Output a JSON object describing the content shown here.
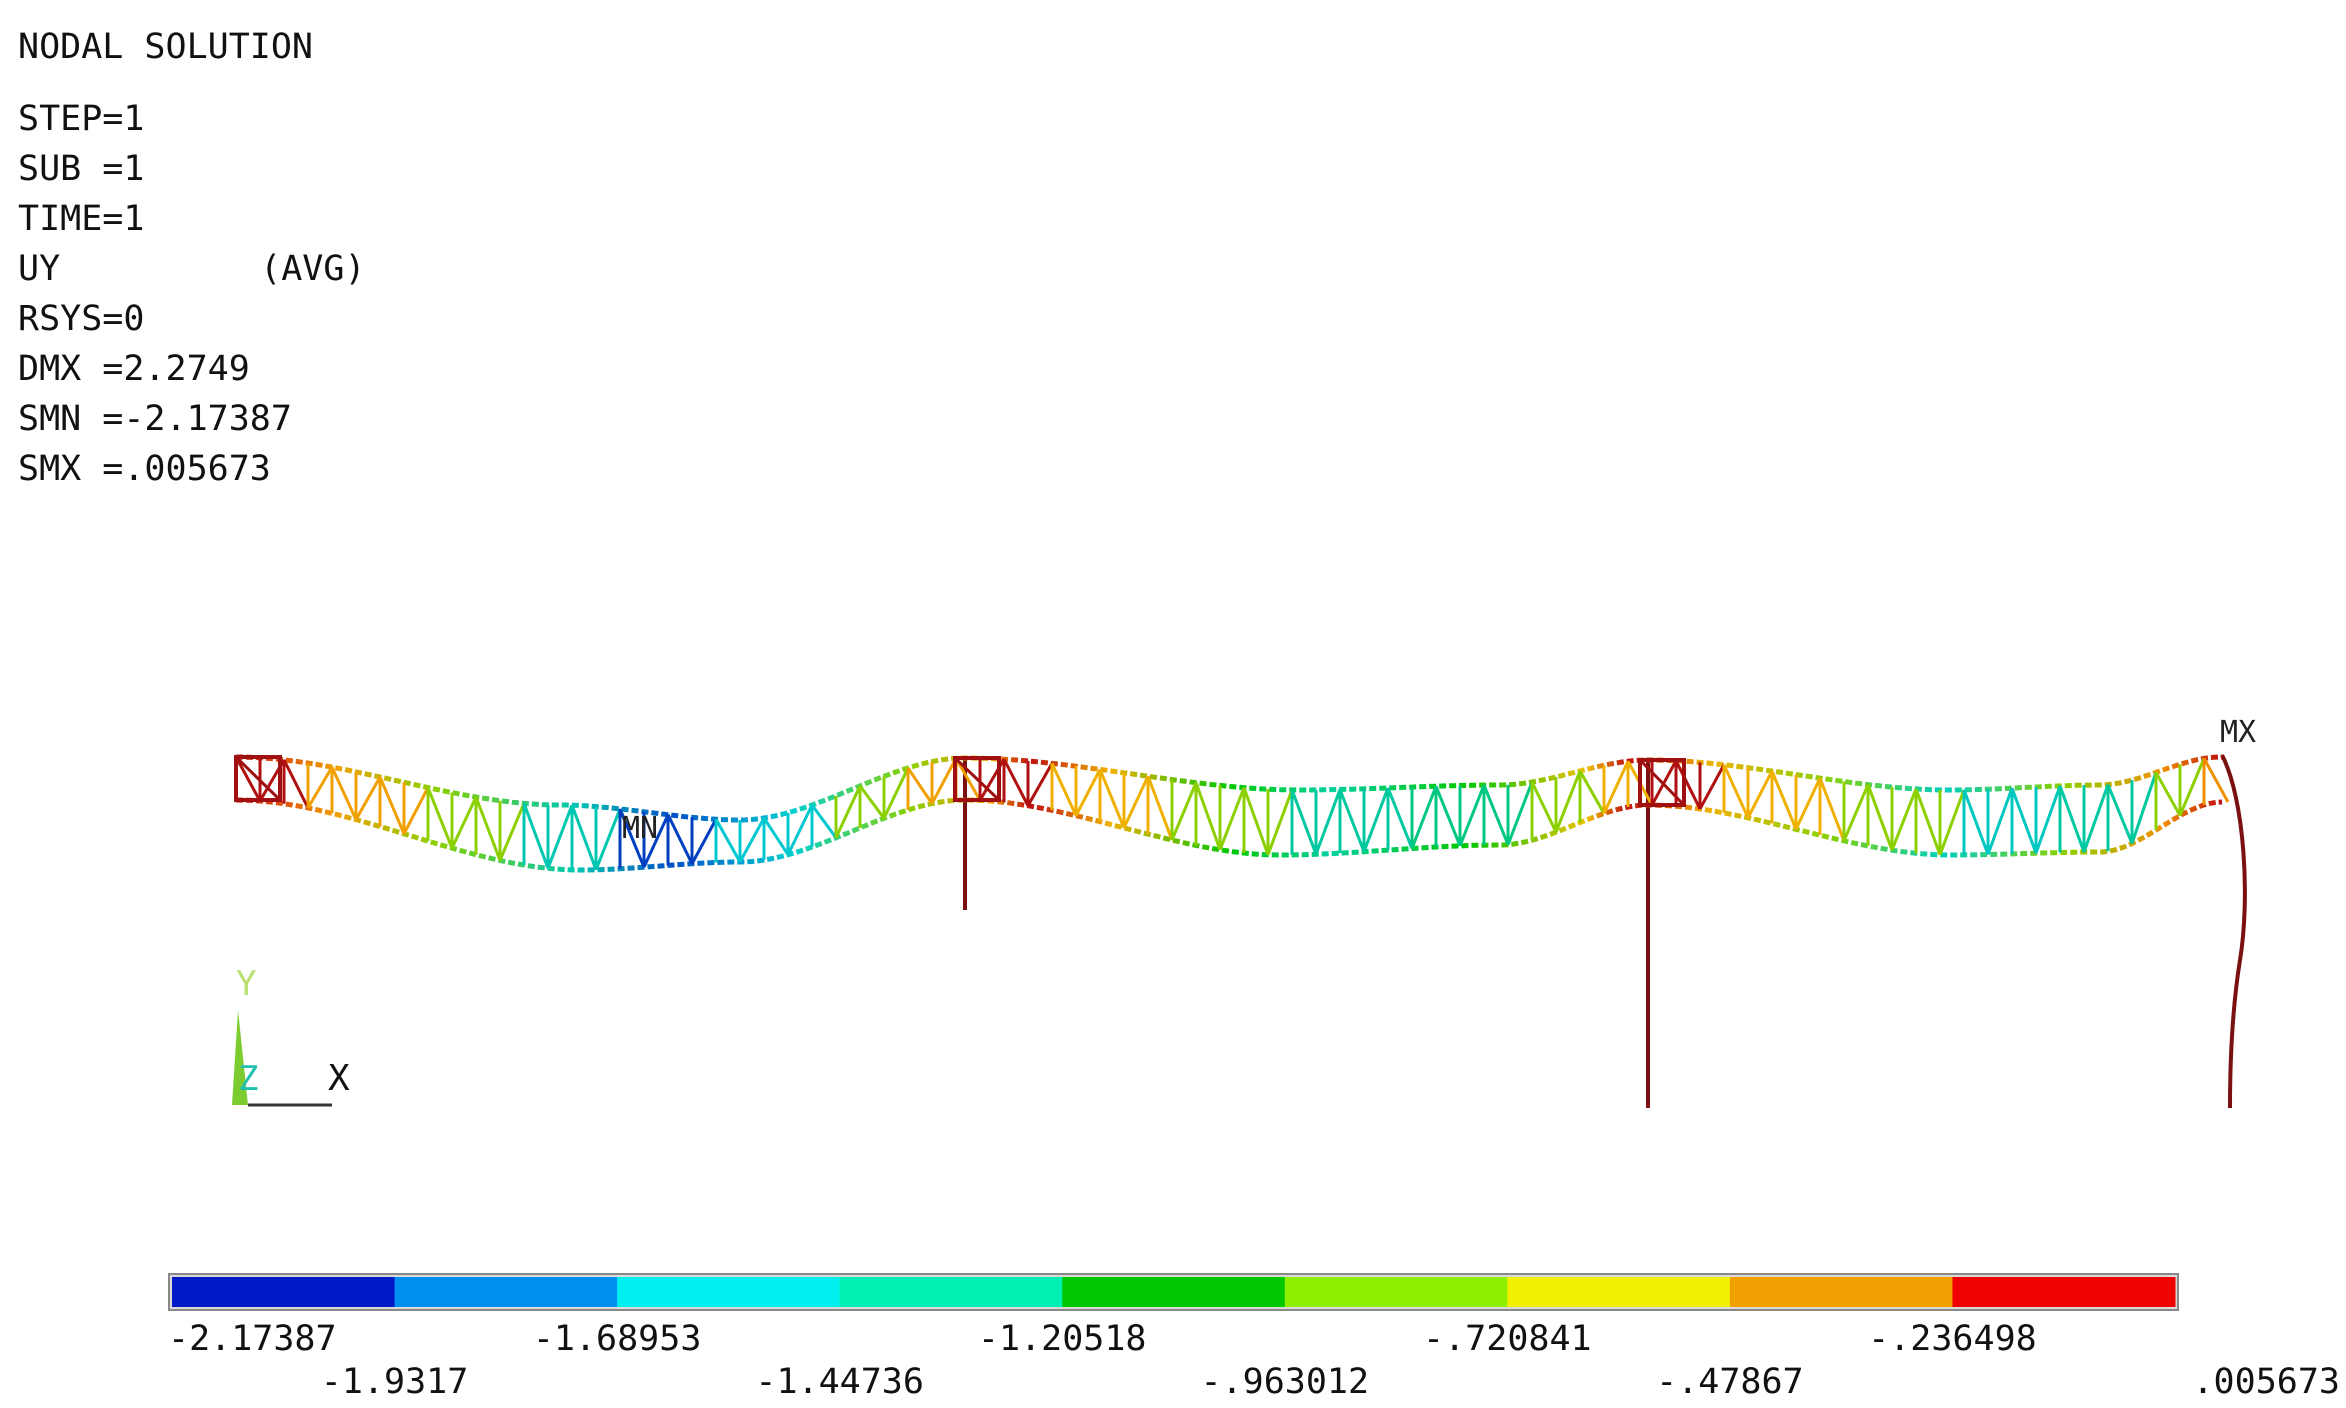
{
  "header": {
    "title": "NODAL SOLUTION",
    "step": "STEP=1",
    "sub": "SUB =1",
    "time": "TIME=1",
    "quantity": "UY",
    "avg": "(AVG)",
    "rsys": "RSYS=0",
    "dmx": "DMX =2.2749",
    "smn": "SMN =-2.17387",
    "smx": "SMX =.005673"
  },
  "markers": {
    "min": "MN",
    "max": "MX"
  },
  "triad": {
    "y": "Y",
    "z": "Z",
    "x": "X"
  },
  "legend": {
    "colors": [
      "#0018c8",
      "#0090f0",
      "#00f0f0",
      "#00f0b4",
      "#00c800",
      "#8cf000",
      "#f0f000",
      "#f0a000",
      "#f00000"
    ],
    "labels_top": [
      "-2.17387",
      "-1.68953",
      "-1.20518",
      "-.720841",
      "-.236498"
    ],
    "labels_bottom": [
      "-1.9317",
      "-1.44736",
      "-.963012",
      "-.47867",
      ".005673"
    ]
  }
}
